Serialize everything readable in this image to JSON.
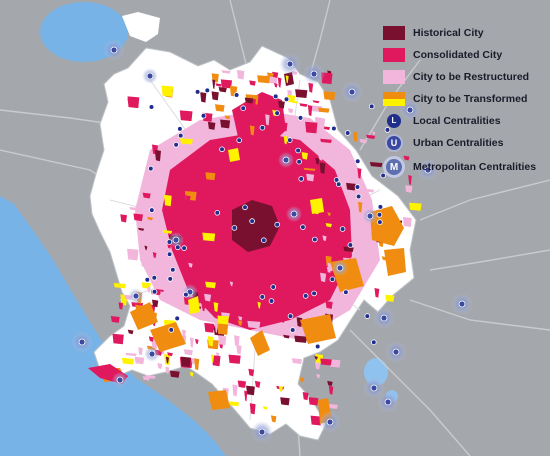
{
  "colors": {
    "background": "#a4a7ab",
    "sea": "#77b3e6",
    "boundary_fill": "#ffffff",
    "historical": "#7a1030",
    "consolidated": "#e0195e",
    "restructured": "#f2b6dc",
    "transformed_top": "#f08c10",
    "transformed_bottom": "#fff200",
    "local_centrality": "#1f2d8c",
    "urban_centrality": "#3a4aa0",
    "metropolitan_centrality": "#5e6fb0",
    "roads": "#c9cbcf"
  },
  "legend": {
    "items": [
      {
        "key": "historical",
        "label": "Historical City"
      },
      {
        "key": "consolidated",
        "label": "Consolidated City"
      },
      {
        "key": "restructured",
        "label": "City to be Restructured"
      },
      {
        "key": "transformed",
        "label": "City to be Transformed"
      },
      {
        "key": "local",
        "label": "Local Centralities",
        "symbol": "L"
      },
      {
        "key": "urban",
        "label": "Urban Centralities",
        "symbol": "U"
      },
      {
        "key": "metropolitan",
        "label": "Metropolitan Centralities",
        "symbol": "M"
      }
    ]
  }
}
